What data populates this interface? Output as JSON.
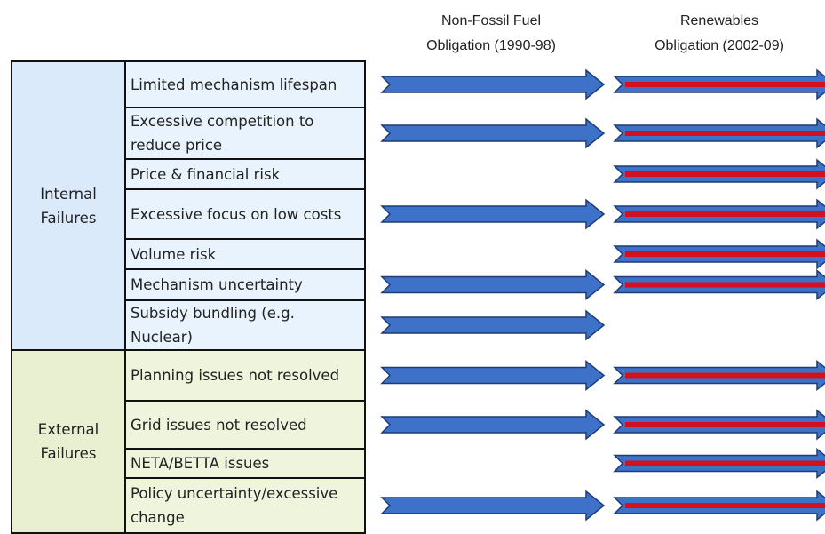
{
  "columns": [
    "Non-Fossil Fuel Obligation (1990-98)",
    "Renewables Obligation (2002-09)"
  ],
  "column_lines": [
    [
      "Non-Fossil Fuel",
      "Obligation (1990-98)"
    ],
    [
      "Renewables",
      "Obligation (2002-09)"
    ]
  ],
  "groups": [
    {
      "label": [
        "Internal",
        "Failures"
      ],
      "items": [
        {
          "label": [
            "Limited mechanism lifespan"
          ],
          "nffo": true,
          "ro": true
        },
        {
          "label": [
            "Excessive competition to",
            "reduce price"
          ],
          "nffo": true,
          "ro": true
        },
        {
          "label": [
            "Price & financial risk"
          ],
          "nffo": false,
          "ro": true
        },
        {
          "label": [
            "Excessive focus on low costs"
          ],
          "nffo": true,
          "ro": true
        },
        {
          "label": [
            "Volume risk"
          ],
          "nffo": false,
          "ro": true
        },
        {
          "label": [
            "Mechanism uncertainty"
          ],
          "nffo": true,
          "ro": true
        },
        {
          "label": [
            "Subsidy bundling (e.g.",
            "Nuclear)"
          ],
          "nffo": true,
          "ro": false
        }
      ]
    },
    {
      "label": [
        "External",
        "Failures"
      ],
      "items": [
        {
          "label": [
            "Planning issues not resolved"
          ],
          "nffo": true,
          "ro": true
        },
        {
          "label": [
            "Grid issues not resolved"
          ],
          "nffo": true,
          "ro": true
        },
        {
          "label": [
            "NETA/BETTA issues"
          ],
          "nffo": false,
          "ro": true
        },
        {
          "label": [
            "Policy uncertainty/excessive",
            "change"
          ],
          "nffo": true,
          "ro": true
        }
      ]
    }
  ]
}
